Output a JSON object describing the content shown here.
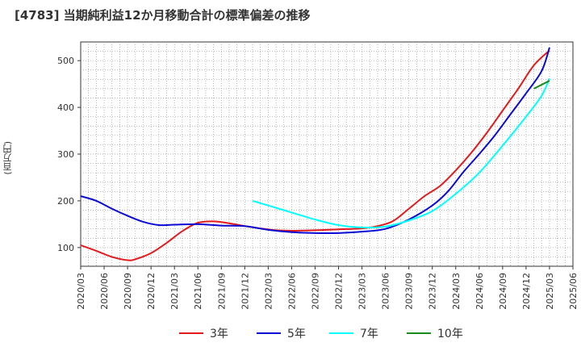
{
  "chart_data": {
    "type": "line",
    "title": "[4783]  当期純利益12か月移動合計の標準偏差の推移",
    "ylabel": "(百万円)",
    "xlabel": "",
    "ylim": [
      60,
      540
    ],
    "yticks": [
      100,
      200,
      300,
      400,
      500
    ],
    "x_start": "2020/03",
    "x_end": "2025/06",
    "xticks": [
      "2020/03",
      "2020/06",
      "2020/09",
      "2020/12",
      "2021/03",
      "2021/06",
      "2021/09",
      "2021/12",
      "2022/03",
      "2022/06",
      "2022/09",
      "2022/12",
      "2023/03",
      "2023/06",
      "2023/09",
      "2023/12",
      "2024/03",
      "2024/06",
      "2024/09",
      "2024/12",
      "2025/03",
      "2025/06"
    ],
    "grid": true,
    "legend_position": "bottom",
    "series": [
      {
        "name": "3年",
        "color": "#e31a1c",
        "points": [
          [
            "2020/03",
            105
          ],
          [
            "2020/05",
            93
          ],
          [
            "2020/07",
            80
          ],
          [
            "2020/09",
            73
          ],
          [
            "2020/10",
            75
          ],
          [
            "2020/12",
            88
          ],
          [
            "2021/02",
            110
          ],
          [
            "2021/04",
            135
          ],
          [
            "2021/06",
            153
          ],
          [
            "2021/08",
            156
          ],
          [
            "2021/10",
            152
          ],
          [
            "2021/12",
            146
          ],
          [
            "2022/02",
            141
          ],
          [
            "2022/04",
            137
          ],
          [
            "2022/06",
            136
          ],
          [
            "2022/09",
            137
          ],
          [
            "2022/12",
            139
          ],
          [
            "2023/03",
            141
          ],
          [
            "2023/05",
            146
          ],
          [
            "2023/07",
            157
          ],
          [
            "2023/09",
            183
          ],
          [
            "2023/11",
            210
          ],
          [
            "2024/01",
            232
          ],
          [
            "2024/03",
            265
          ],
          [
            "2024/05",
            303
          ],
          [
            "2024/07",
            346
          ],
          [
            "2024/09",
            393
          ],
          [
            "2024/11",
            440
          ],
          [
            "2025/01",
            490
          ],
          [
            "2025/03",
            522
          ]
        ]
      },
      {
        "name": "5年",
        "color": "#0a0ad2",
        "points": [
          [
            "2020/03",
            210
          ],
          [
            "2020/05",
            200
          ],
          [
            "2020/07",
            183
          ],
          [
            "2020/09",
            168
          ],
          [
            "2020/11",
            155
          ],
          [
            "2021/01",
            148
          ],
          [
            "2021/03",
            149
          ],
          [
            "2021/06",
            150
          ],
          [
            "2021/09",
            147
          ],
          [
            "2021/12",
            146
          ],
          [
            "2022/03",
            138
          ],
          [
            "2022/06",
            133
          ],
          [
            "2022/09",
            131
          ],
          [
            "2022/12",
            131
          ],
          [
            "2023/03",
            134
          ],
          [
            "2023/06",
            140
          ],
          [
            "2023/09",
            160
          ],
          [
            "2023/12",
            190
          ],
          [
            "2024/02",
            220
          ],
          [
            "2024/04",
            262
          ],
          [
            "2024/06",
            300
          ],
          [
            "2024/08",
            340
          ],
          [
            "2024/10",
            385
          ],
          [
            "2024/12",
            430
          ],
          [
            "2025/02",
            478
          ],
          [
            "2025/03",
            528
          ]
        ]
      },
      {
        "name": "7年",
        "color": "#00ffff",
        "points": [
          [
            "2022/01",
            200
          ],
          [
            "2022/03",
            190
          ],
          [
            "2022/06",
            175
          ],
          [
            "2022/09",
            160
          ],
          [
            "2022/12",
            148
          ],
          [
            "2023/03",
            143
          ],
          [
            "2023/06",
            145
          ],
          [
            "2023/09",
            158
          ],
          [
            "2023/12",
            178
          ],
          [
            "2024/03",
            215
          ],
          [
            "2024/06",
            260
          ],
          [
            "2024/09",
            318
          ],
          [
            "2024/12",
            380
          ],
          [
            "2025/02",
            425
          ],
          [
            "2025/03",
            462
          ]
        ]
      },
      {
        "name": "10年",
        "color": "#1a8a1a",
        "points": [
          [
            "2025/01",
            440
          ],
          [
            "2025/03",
            457
          ]
        ]
      }
    ]
  }
}
